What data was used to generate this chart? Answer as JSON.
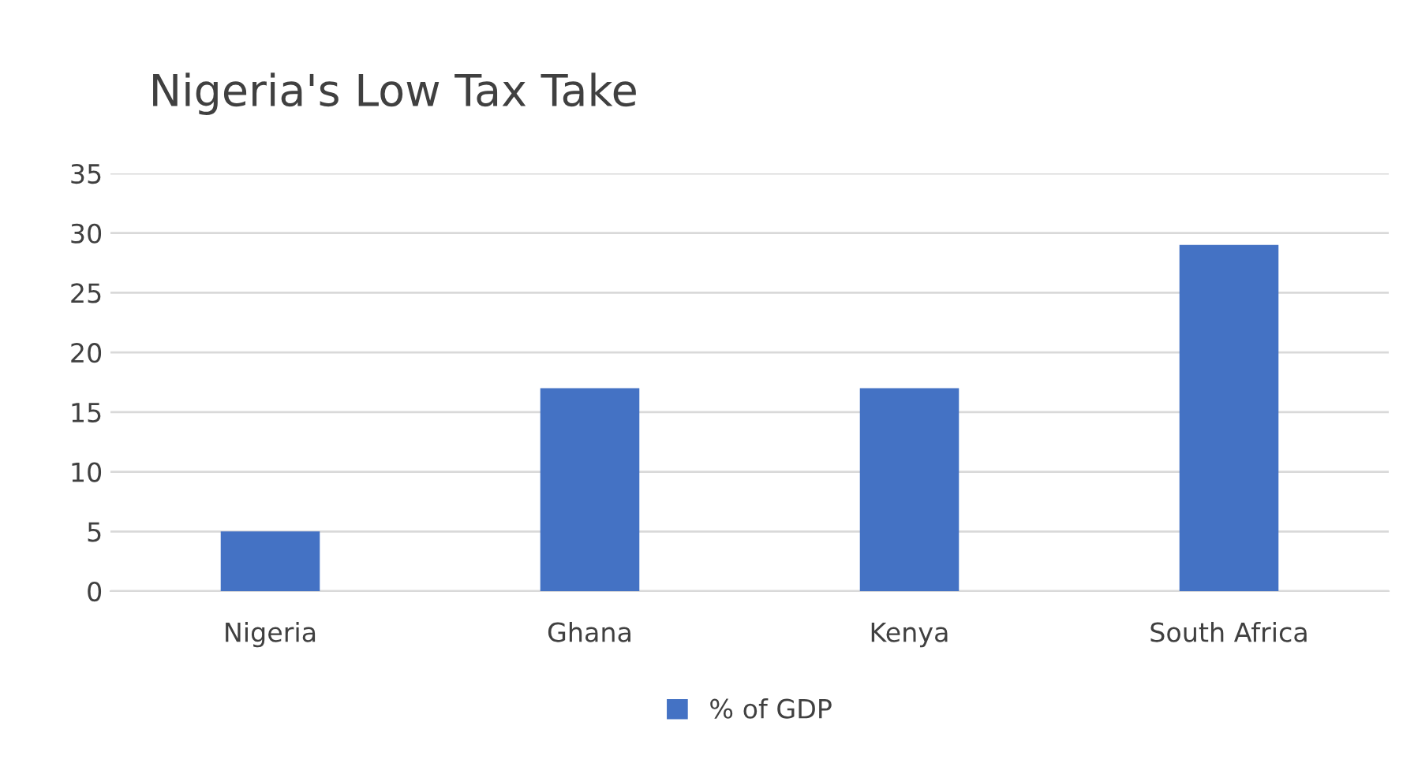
{
  "chart_data": {
    "type": "bar",
    "title": "Nigeria's Low Tax Take",
    "categories": [
      "Nigeria",
      "Ghana",
      "Kenya",
      "South Africa"
    ],
    "series": [
      {
        "name": "% of GDP",
        "color": "#4472c4",
        "values": [
          5,
          17,
          17,
          29
        ]
      }
    ],
    "ylim": [
      0,
      35
    ],
    "yticks": [
      0,
      5,
      10,
      15,
      20,
      25,
      30,
      35
    ],
    "grid": "y",
    "legend": "bottom"
  }
}
